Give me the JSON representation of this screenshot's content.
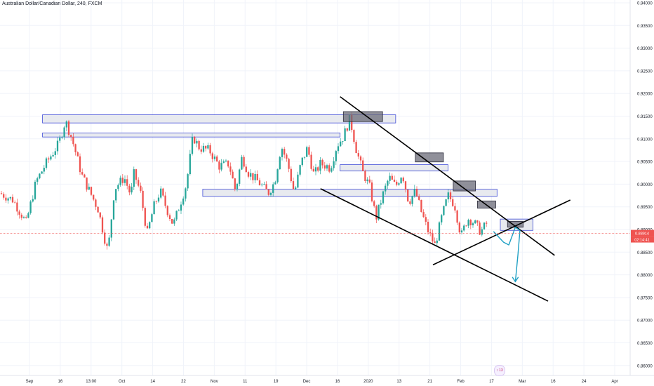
{
  "chart_title": "Australian Dollar/Canadian Dollar, 240, FXCM",
  "badge": "↕ 13",
  "price_labels": {
    "last": "0.88914",
    "countdown": "02:14:41"
  },
  "colors": {
    "up": "#26a69a",
    "down": "#ef5350",
    "zone_fill": "#e4e6ec",
    "zone_border": "#3f4bd6",
    "supply_fill": "#6b6b78",
    "trendline": "#000000",
    "projection": "#1fa0c4",
    "price_line": "#ef5350",
    "grid": "#f0f3fa",
    "axis_text": "#131722"
  },
  "chart_data": {
    "type": "candlestick",
    "symbol": "Australian Dollar/Canadian Dollar",
    "timeframe": "240",
    "source": "FXCM",
    "y_axis_ticks": [
      0.94,
      0.935,
      0.93,
      0.925,
      0.92,
      0.915,
      0.91,
      0.905,
      0.9,
      0.895,
      0.89,
      0.885,
      0.88,
      0.875,
      0.87,
      0.865,
      0.86
    ],
    "y_tick_labels": [
      "0.94000",
      "0.93500",
      "0.93000",
      "0.92500",
      "0.92000",
      "0.91500",
      "0.91000",
      "0.90500",
      "0.90000",
      "0.89500",
      "0.89000",
      "0.88500",
      "0.88000",
      "0.87500",
      "0.87000",
      "0.86500",
      "0.86000"
    ],
    "x_tick_labels": [
      "Sep",
      "16",
      "13:00",
      "Oct",
      "14",
      "22",
      "Nov",
      "11",
      "19",
      "Dec",
      "16",
      "2020",
      "13",
      "21",
      "Feb",
      "17",
      "Mar",
      "16",
      "24",
      "Apr"
    ],
    "last_price": 0.88914,
    "price_path": [
      [
        0,
        0.898
      ],
      [
        0.02,
        0.8965
      ],
      [
        0.04,
        0.8915
      ],
      [
        0.055,
        0.9005
      ],
      [
        0.07,
        0.9045
      ],
      [
        0.09,
        0.909
      ],
      [
        0.1,
        0.914
      ],
      [
        0.11,
        0.91
      ],
      [
        0.125,
        0.902
      ],
      [
        0.14,
        0.8975
      ],
      [
        0.15,
        0.8945
      ],
      [
        0.16,
        0.888
      ],
      [
        0.165,
        0.885
      ],
      [
        0.175,
        0.899
      ],
      [
        0.19,
        0.9015
      ],
      [
        0.2,
        0.8975
      ],
      [
        0.205,
        0.9025
      ],
      [
        0.215,
        0.898
      ],
      [
        0.225,
        0.889
      ],
      [
        0.235,
        0.895
      ],
      [
        0.245,
        0.8985
      ],
      [
        0.255,
        0.8945
      ],
      [
        0.265,
        0.891
      ],
      [
        0.275,
        0.8955
      ],
      [
        0.285,
        0.9
      ],
      [
        0.295,
        0.9105
      ],
      [
        0.305,
        0.908
      ],
      [
        0.32,
        0.9075
      ],
      [
        0.335,
        0.904
      ],
      [
        0.35,
        0.9045
      ],
      [
        0.36,
        0.8985
      ],
      [
        0.37,
        0.906
      ],
      [
        0.38,
        0.9025
      ],
      [
        0.395,
        0.9005
      ],
      [
        0.41,
        0.898
      ],
      [
        0.42,
        0.9005
      ],
      [
        0.43,
        0.9085
      ],
      [
        0.44,
        0.9045
      ],
      [
        0.45,
        0.898
      ],
      [
        0.46,
        0.9045
      ],
      [
        0.47,
        0.908
      ],
      [
        0.48,
        0.902
      ],
      [
        0.49,
        0.9045
      ],
      [
        0.5,
        0.904
      ],
      [
        0.505,
        0.9035
      ],
      [
        0.515,
        0.9085
      ],
      [
        0.525,
        0.9105
      ],
      [
        0.535,
        0.9145
      ],
      [
        0.545,
        0.9075
      ],
      [
        0.555,
        0.9025
      ],
      [
        0.565,
        0.8995
      ],
      [
        0.575,
        0.8925
      ],
      [
        0.585,
        0.8975
      ],
      [
        0.595,
        0.9015
      ],
      [
        0.605,
        0.8995
      ],
      [
        0.615,
        0.9025
      ],
      [
        0.625,
        0.896
      ],
      [
        0.635,
        0.8985
      ],
      [
        0.645,
        0.8935
      ],
      [
        0.655,
        0.8895
      ],
      [
        0.665,
        0.8865
      ],
      [
        0.675,
        0.8925
      ],
      [
        0.685,
        0.8975
      ],
      [
        0.695,
        0.8955
      ],
      [
        0.705,
        0.8885
      ],
      [
        0.715,
        0.8925
      ],
      [
        0.725,
        0.8915
      ],
      [
        0.735,
        0.8895
      ],
      [
        0.745,
        0.8915
      ]
    ],
    "horizontal_zones": [
      {
        "x_start": 0.065,
        "x_end": 0.605,
        "y_low": 0.9135,
        "y_high": 0.9153
      },
      {
        "x_start": 0.065,
        "x_end": 0.52,
        "y_low": 0.9104,
        "y_high": 0.9113
      },
      {
        "x_start": 0.31,
        "x_end": 0.76,
        "y_low": 0.8973,
        "y_high": 0.8989
      },
      {
        "x_start": 0.52,
        "x_end": 0.685,
        "y_low": 0.9029,
        "y_high": 0.9043
      },
      {
        "x_start": 0.765,
        "x_end": 0.815,
        "y_low": 0.8898,
        "y_high": 0.8923
      }
    ],
    "supply_boxes": [
      {
        "x_start": 0.525,
        "x_end": 0.585,
        "y_low": 0.9138,
        "y_high": 0.916
      },
      {
        "x_start": 0.635,
        "x_end": 0.678,
        "y_low": 0.9049,
        "y_high": 0.9069
      },
      {
        "x_start": 0.693,
        "x_end": 0.727,
        "y_low": 0.8985,
        "y_high": 0.9007
      },
      {
        "x_start": 0.73,
        "x_end": 0.758,
        "y_low": 0.8947,
        "y_high": 0.8963
      },
      {
        "x_start": 0.776,
        "x_end": 0.8,
        "y_low": 0.8905,
        "y_high": 0.8918
      }
    ],
    "trendlines": [
      {
        "x1": 0.52,
        "y1": 0.9193,
        "x2": 0.848,
        "y2": 0.8843
      },
      {
        "x1": 0.49,
        "y1": 0.899,
        "x2": 0.838,
        "y2": 0.8742
      },
      {
        "x1": 0.662,
        "y1": 0.8822,
        "x2": 0.872,
        "y2": 0.8965
      }
    ],
    "projection_path": [
      [
        0.755,
        0.8895
      ],
      [
        0.77,
        0.8872
      ],
      [
        0.778,
        0.8866
      ],
      [
        0.788,
        0.8905
      ],
      [
        0.795,
        0.8898
      ],
      [
        0.792,
        0.8845
      ],
      [
        0.788,
        0.8785
      ]
    ],
    "grid": true,
    "legend": "none"
  }
}
